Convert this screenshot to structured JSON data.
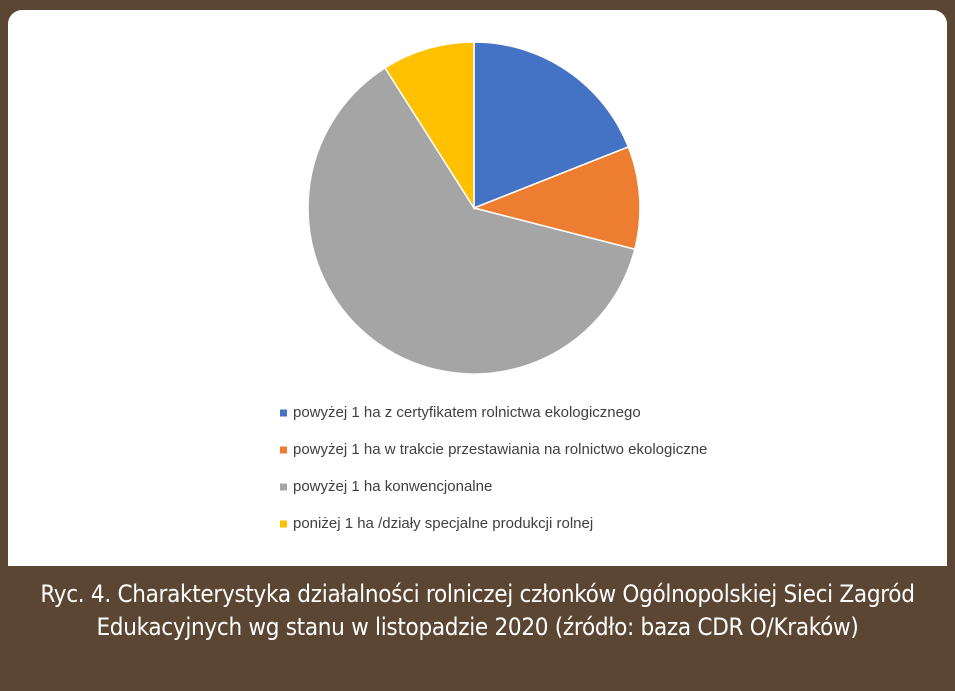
{
  "chart_data": {
    "type": "pie",
    "categories": [
      "powyżej 1 ha z certyfikatem rolnictwa ekologicznego",
      "powyżej 1 ha w trakcie przestawiania na rolnictwo ekologiczne",
      "powyżej 1 ha konwencjonalne",
      "poniżej 1 ha /działy specjalne produkcji rolnej"
    ],
    "values": [
      19,
      10,
      62,
      9
    ],
    "colors": [
      "#4472c4",
      "#ed7d31",
      "#a5a5a5",
      "#ffc000"
    ],
    "legend": "bottom",
    "caption": "Ryc. 4. Charakterystyka działalności rolniczej członków Ogólnopolskiej Sieci Zagród Edukacyjnych wg stanu w listopadzie 2020 (źródło: baza CDR O/Kraków)"
  }
}
